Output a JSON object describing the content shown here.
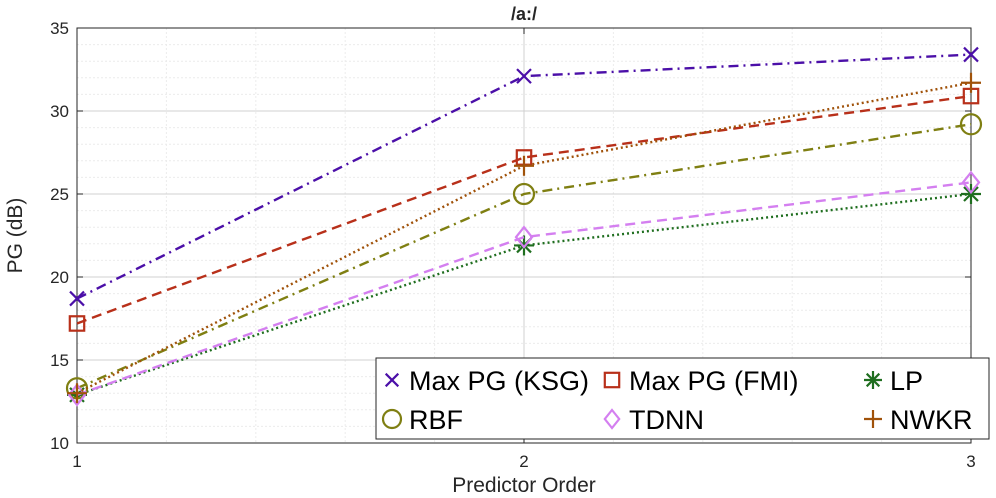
{
  "chart_data": {
    "type": "line",
    "title": "/a:/",
    "xlabel": "Predictor Order",
    "ylabel": "PG (dB)",
    "x": [
      1,
      2,
      3
    ],
    "xlim": [
      1,
      3
    ],
    "ylim": [
      10,
      35
    ],
    "xticks": [
      1,
      2,
      3
    ],
    "yticks": [
      10,
      15,
      20,
      25,
      30,
      35
    ],
    "grid": true,
    "minor_grid": true,
    "legend_position": "bottom-right",
    "legend_columns": 3,
    "series": [
      {
        "name": "Max PG (KSG)",
        "values": [
          18.7,
          32.1,
          33.4
        ],
        "color": "#4b0fa8",
        "line": "dash-dot",
        "marker": "x"
      },
      {
        "name": "Max PG (FMI)",
        "values": [
          17.2,
          27.2,
          30.9
        ],
        "color": "#b8301a",
        "line": "dash",
        "marker": "square"
      },
      {
        "name": "LP",
        "values": [
          12.9,
          21.9,
          25.0
        ],
        "color": "#1f6e1f",
        "line": "dot",
        "marker": "asterisk"
      },
      {
        "name": "RBF",
        "values": [
          13.3,
          25.0,
          29.2
        ],
        "color": "#7f7f12",
        "line": "dash-dot",
        "marker": "circle"
      },
      {
        "name": "TDNN",
        "values": [
          12.9,
          22.4,
          25.7
        ],
        "color": "#d47ff0",
        "line": "dash",
        "marker": "diamond"
      },
      {
        "name": "NWKR",
        "values": [
          13.0,
          26.7,
          31.7
        ],
        "color": "#a0520a",
        "line": "dot",
        "marker": "plus"
      }
    ]
  }
}
